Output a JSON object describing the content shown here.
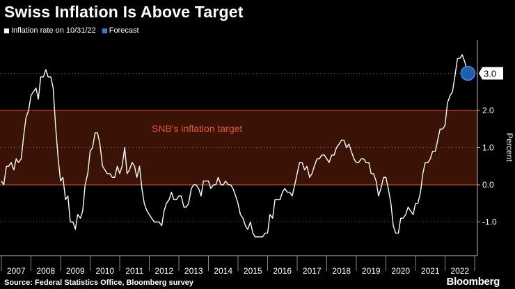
{
  "header": {
    "title": "Swiss Inflation Is Above Target"
  },
  "legend": [
    {
      "label": "Inflation rate on 10/31/22",
      "color": "#ffffff"
    },
    {
      "label": "Forecast",
      "color": "#2f7fd6"
    }
  ],
  "footer": {
    "source": "Source: Federal Statistics Office, Bloomberg survey",
    "brand": "Bloomberg"
  },
  "chart_data": {
    "type": "line",
    "title": "Swiss Inflation Is Above Target",
    "xlabel": "",
    "ylabel": "Percent",
    "xlim": [
      2007,
      2022.83
    ],
    "ylim": [
      -1.9,
      4.0
    ],
    "yticks": [
      2.0,
      1.0,
      0.0,
      -1.0
    ],
    "ytick_labels": [
      "2.0",
      "1.0",
      "0.0",
      "-1.0"
    ],
    "xtick_labels": [
      "2007",
      "2008",
      "2009",
      "2010",
      "2011",
      "2012",
      "2013",
      "2014",
      "2015",
      "2016",
      "2017",
      "2018",
      "2019",
      "2020",
      "2021",
      "2022"
    ],
    "band": {
      "label": "SNB's inflation target",
      "from": 0.0,
      "to": 2.0,
      "color": "#3a1206",
      "edge": "#e8562a"
    },
    "forecast": {
      "x": 2022.75,
      "y": 3.0,
      "label": "3.0"
    },
    "series": [
      {
        "name": "Inflation rate on 10/31/22",
        "points": [
          [
            2007.0,
            0.1
          ],
          [
            2007.08,
            0.0
          ],
          [
            2007.17,
            0.5
          ],
          [
            2007.25,
            0.5
          ],
          [
            2007.33,
            0.6
          ],
          [
            2007.42,
            0.4
          ],
          [
            2007.5,
            0.7
          ],
          [
            2007.58,
            0.6
          ],
          [
            2007.67,
            0.7
          ],
          [
            2007.75,
            1.3
          ],
          [
            2007.83,
            1.8
          ],
          [
            2007.92,
            2.0
          ],
          [
            2008.0,
            2.4
          ],
          [
            2008.08,
            2.5
          ],
          [
            2008.17,
            2.6
          ],
          [
            2008.25,
            2.3
          ],
          [
            2008.33,
            2.9
          ],
          [
            2008.42,
            2.9
          ],
          [
            2008.5,
            3.1
          ],
          [
            2008.58,
            2.9
          ],
          [
            2008.67,
            2.9
          ],
          [
            2008.75,
            2.6
          ],
          [
            2008.83,
            1.6
          ],
          [
            2008.92,
            0.7
          ],
          [
            2009.0,
            0.1
          ],
          [
            2009.08,
            0.2
          ],
          [
            2009.17,
            -0.4
          ],
          [
            2009.25,
            -0.3
          ],
          [
            2009.33,
            -1.0
          ],
          [
            2009.42,
            -1.0
          ],
          [
            2009.5,
            -1.2
          ],
          [
            2009.58,
            -0.8
          ],
          [
            2009.67,
            -0.9
          ],
          [
            2009.75,
            -0.7
          ],
          [
            2009.83,
            0.0
          ],
          [
            2009.92,
            0.3
          ],
          [
            2010.0,
            0.9
          ],
          [
            2010.08,
            1.0
          ],
          [
            2010.17,
            1.4
          ],
          [
            2010.25,
            1.4
          ],
          [
            2010.33,
            1.1
          ],
          [
            2010.42,
            0.5
          ],
          [
            2010.5,
            0.4
          ],
          [
            2010.58,
            0.3
          ],
          [
            2010.67,
            0.3
          ],
          [
            2010.75,
            0.2
          ],
          [
            2010.83,
            0.2
          ],
          [
            2010.92,
            0.5
          ],
          [
            2011.0,
            0.3
          ],
          [
            2011.08,
            0.5
          ],
          [
            2011.17,
            1.0
          ],
          [
            2011.25,
            0.3
          ],
          [
            2011.33,
            0.4
          ],
          [
            2011.42,
            0.6
          ],
          [
            2011.5,
            0.5
          ],
          [
            2011.58,
            0.2
          ],
          [
            2011.67,
            0.5
          ],
          [
            2011.75,
            -0.1
          ],
          [
            2011.83,
            -0.5
          ],
          [
            2011.92,
            -0.7
          ],
          [
            2012.0,
            -0.8
          ],
          [
            2012.08,
            -0.9
          ],
          [
            2012.17,
            -1.0
          ],
          [
            2012.25,
            -1.0
          ],
          [
            2012.33,
            -1.0
          ],
          [
            2012.42,
            -1.1
          ],
          [
            2012.5,
            -0.7
          ],
          [
            2012.58,
            -0.5
          ],
          [
            2012.67,
            -0.4
          ],
          [
            2012.75,
            -0.2
          ],
          [
            2012.83,
            -0.4
          ],
          [
            2012.92,
            -0.4
          ],
          [
            2013.0,
            -0.3
          ],
          [
            2013.08,
            -0.3
          ],
          [
            2013.17,
            -0.6
          ],
          [
            2013.25,
            -0.6
          ],
          [
            2013.33,
            -0.5
          ],
          [
            2013.42,
            -0.1
          ],
          [
            2013.5,
            0.0
          ],
          [
            2013.58,
            0.0
          ],
          [
            2013.67,
            -0.1
          ],
          [
            2013.75,
            -0.3
          ],
          [
            2013.83,
            0.1
          ],
          [
            2013.92,
            0.1
          ],
          [
            2014.0,
            0.1
          ],
          [
            2014.08,
            -0.1
          ],
          [
            2014.17,
            0.0
          ],
          [
            2014.25,
            0.0
          ],
          [
            2014.33,
            0.2
          ],
          [
            2014.42,
            0.0
          ],
          [
            2014.5,
            0.0
          ],
          [
            2014.58,
            0.1
          ],
          [
            2014.67,
            0.0
          ],
          [
            2014.75,
            0.0
          ],
          [
            2014.83,
            -0.1
          ],
          [
            2014.92,
            -0.3
          ],
          [
            2015.0,
            -0.5
          ],
          [
            2015.08,
            -0.8
          ],
          [
            2015.17,
            -0.9
          ],
          [
            2015.25,
            -1.1
          ],
          [
            2015.33,
            -1.2
          ],
          [
            2015.42,
            -1.0
          ],
          [
            2015.5,
            -1.3
          ],
          [
            2015.58,
            -1.4
          ],
          [
            2015.67,
            -1.4
          ],
          [
            2015.75,
            -1.4
          ],
          [
            2015.83,
            -1.4
          ],
          [
            2015.92,
            -1.3
          ],
          [
            2016.0,
            -1.3
          ],
          [
            2016.08,
            -0.8
          ],
          [
            2016.17,
            -0.9
          ],
          [
            2016.25,
            -0.4
          ],
          [
            2016.33,
            -0.4
          ],
          [
            2016.42,
            -0.4
          ],
          [
            2016.5,
            -0.2
          ],
          [
            2016.58,
            -0.1
          ],
          [
            2016.67,
            -0.2
          ],
          [
            2016.75,
            -0.2
          ],
          [
            2016.83,
            -0.3
          ],
          [
            2016.92,
            0.0
          ],
          [
            2017.0,
            0.3
          ],
          [
            2017.08,
            0.6
          ],
          [
            2017.17,
            0.6
          ],
          [
            2017.25,
            0.4
          ],
          [
            2017.33,
            0.5
          ],
          [
            2017.42,
            0.2
          ],
          [
            2017.5,
            0.3
          ],
          [
            2017.58,
            0.5
          ],
          [
            2017.67,
            0.7
          ],
          [
            2017.75,
            0.7
          ],
          [
            2017.83,
            0.8
          ],
          [
            2017.92,
            0.8
          ],
          [
            2018.0,
            0.7
          ],
          [
            2018.08,
            0.6
          ],
          [
            2018.17,
            0.8
          ],
          [
            2018.25,
            0.8
          ],
          [
            2018.33,
            1.0
          ],
          [
            2018.42,
            1.1
          ],
          [
            2018.5,
            1.2
          ],
          [
            2018.58,
            1.2
          ],
          [
            2018.67,
            1.0
          ],
          [
            2018.75,
            1.1
          ],
          [
            2018.83,
            0.9
          ],
          [
            2018.92,
            0.7
          ],
          [
            2019.0,
            0.6
          ],
          [
            2019.08,
            0.6
          ],
          [
            2019.17,
            0.7
          ],
          [
            2019.25,
            0.7
          ],
          [
            2019.33,
            0.6
          ],
          [
            2019.42,
            0.6
          ],
          [
            2019.5,
            0.3
          ],
          [
            2019.58,
            0.3
          ],
          [
            2019.67,
            0.1
          ],
          [
            2019.75,
            -0.3
          ],
          [
            2019.83,
            -0.1
          ],
          [
            2019.92,
            0.2
          ],
          [
            2020.0,
            0.2
          ],
          [
            2020.08,
            -0.1
          ],
          [
            2020.17,
            -0.5
          ],
          [
            2020.25,
            -1.1
          ],
          [
            2020.33,
            -1.3
          ],
          [
            2020.42,
            -1.3
          ],
          [
            2020.5,
            -0.9
          ],
          [
            2020.58,
            -0.9
          ],
          [
            2020.67,
            -0.8
          ],
          [
            2020.75,
            -0.6
          ],
          [
            2020.83,
            -0.7
          ],
          [
            2020.92,
            -0.8
          ],
          [
            2021.0,
            -0.5
          ],
          [
            2021.08,
            -0.5
          ],
          [
            2021.17,
            -0.2
          ],
          [
            2021.25,
            0.3
          ],
          [
            2021.33,
            0.6
          ],
          [
            2021.42,
            0.6
          ],
          [
            2021.5,
            0.7
          ],
          [
            2021.58,
            0.9
          ],
          [
            2021.67,
            0.9
          ],
          [
            2021.75,
            1.2
          ],
          [
            2021.83,
            1.5
          ],
          [
            2021.92,
            1.5
          ],
          [
            2022.0,
            1.6
          ],
          [
            2022.08,
            2.2
          ],
          [
            2022.17,
            2.4
          ],
          [
            2022.25,
            2.5
          ],
          [
            2022.33,
            2.9
          ],
          [
            2022.42,
            3.4
          ],
          [
            2022.5,
            3.4
          ],
          [
            2022.58,
            3.5
          ],
          [
            2022.67,
            3.3
          ],
          [
            2022.75,
            3.0
          ]
        ]
      }
    ]
  }
}
